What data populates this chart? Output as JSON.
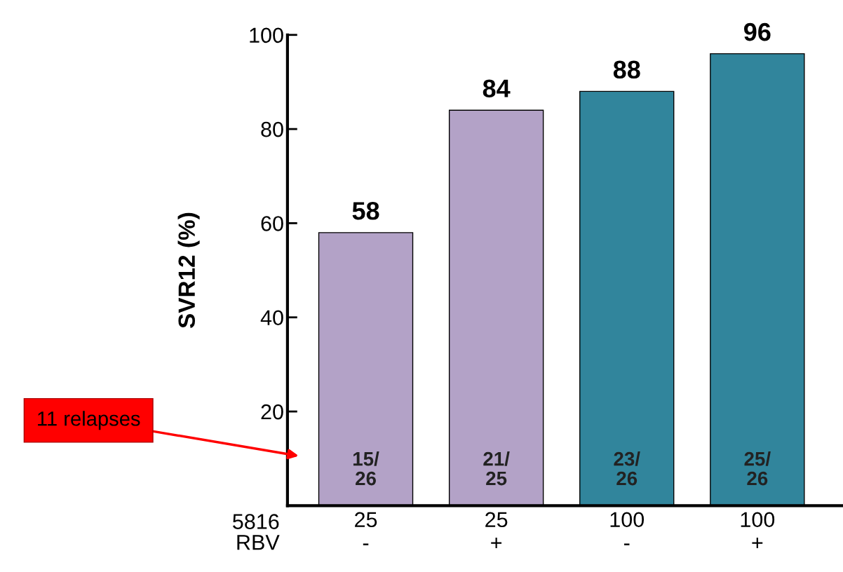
{
  "chart_data": {
    "type": "bar",
    "ylabel": "SVR12 (%)",
    "categories": [
      "25\n-",
      "25\n+",
      "100\n-",
      "100\n+"
    ],
    "values": [
      58,
      84,
      88,
      96
    ],
    "colors": [
      "#b3a2c7",
      "#b3a2c7",
      "#31859c",
      "#31859c"
    ],
    "data_labels": true,
    "ylim": [
      0,
      100
    ],
    "yticks": [
      {
        "value": 0,
        "label": null
      },
      20,
      40,
      60,
      80,
      100
    ],
    "grid": false,
    "annotations": [
      "5816\nRBV",
      "15/\n26",
      "21/\n25",
      "23/\n26",
      "25/\n26",
      "11 relapses"
    ]
  }
}
